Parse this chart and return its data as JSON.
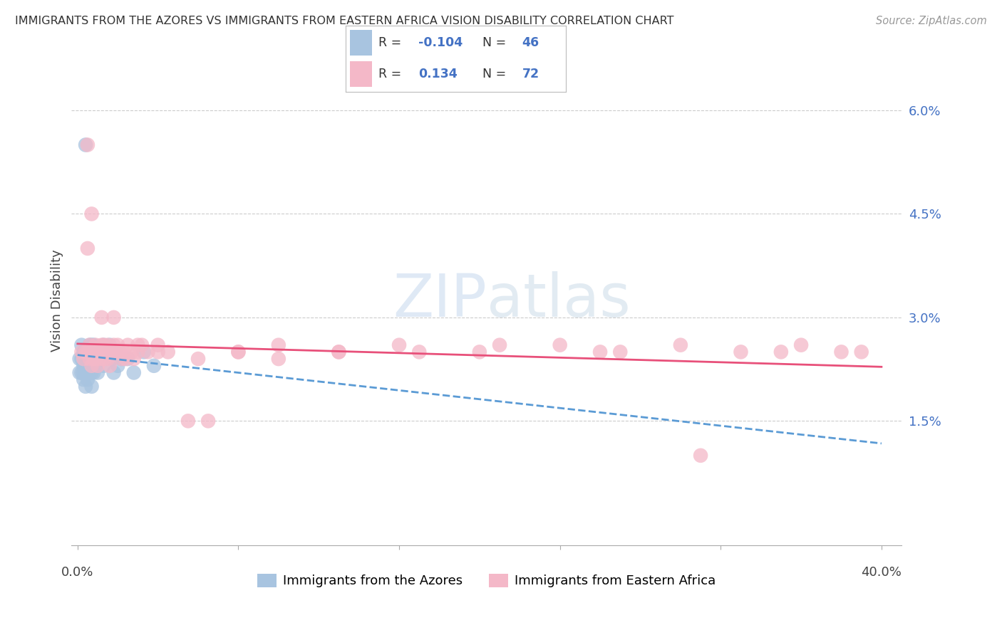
{
  "title": "IMMIGRANTS FROM THE AZORES VS IMMIGRANTS FROM EASTERN AFRICA VISION DISABILITY CORRELATION CHART",
  "source": "Source: ZipAtlas.com",
  "ylabel": "Vision Disability",
  "legend_label1": "Immigrants from the Azores",
  "legend_label2": "Immigrants from Eastern Africa",
  "color_blue": "#a8c4e0",
  "color_pink": "#f4b8c8",
  "color_blue_line": "#5b9bd5",
  "color_pink_line": "#e8507a",
  "color_text_blue": "#4472c4",
  "color_grid": "#cccccc",
  "R1": -0.104,
  "N1": 46,
  "R2": 0.134,
  "N2": 72,
  "azores_x": [
    0.001,
    0.001,
    0.002,
    0.002,
    0.002,
    0.003,
    0.003,
    0.003,
    0.003,
    0.004,
    0.004,
    0.004,
    0.005,
    0.005,
    0.005,
    0.005,
    0.006,
    0.006,
    0.006,
    0.007,
    0.007,
    0.007,
    0.007,
    0.008,
    0.008,
    0.008,
    0.009,
    0.009,
    0.01,
    0.01,
    0.011,
    0.012,
    0.013,
    0.013,
    0.015,
    0.016,
    0.017,
    0.018,
    0.019,
    0.02,
    0.022,
    0.025,
    0.028,
    0.033,
    0.038,
    0.004
  ],
  "azores_y": [
    0.024,
    0.022,
    0.026,
    0.024,
    0.022,
    0.025,
    0.023,
    0.022,
    0.021,
    0.024,
    0.022,
    0.02,
    0.025,
    0.024,
    0.022,
    0.021,
    0.026,
    0.024,
    0.022,
    0.026,
    0.024,
    0.022,
    0.02,
    0.026,
    0.025,
    0.022,
    0.025,
    0.023,
    0.025,
    0.022,
    0.025,
    0.024,
    0.026,
    0.023,
    0.025,
    0.026,
    0.024,
    0.022,
    0.025,
    0.023,
    0.024,
    0.024,
    0.022,
    0.025,
    0.023,
    0.055
  ],
  "eastern_x": [
    0.002,
    0.003,
    0.004,
    0.005,
    0.005,
    0.006,
    0.006,
    0.007,
    0.007,
    0.008,
    0.008,
    0.009,
    0.009,
    0.01,
    0.01,
    0.011,
    0.011,
    0.012,
    0.012,
    0.013,
    0.013,
    0.014,
    0.015,
    0.015,
    0.016,
    0.016,
    0.017,
    0.018,
    0.018,
    0.019,
    0.02,
    0.021,
    0.022,
    0.023,
    0.024,
    0.025,
    0.027,
    0.028,
    0.03,
    0.032,
    0.035,
    0.04,
    0.045,
    0.055,
    0.065,
    0.08,
    0.1,
    0.13,
    0.16,
    0.2,
    0.24,
    0.27,
    0.3,
    0.33,
    0.36,
    0.38,
    0.005,
    0.007,
    0.012,
    0.02,
    0.03,
    0.04,
    0.06,
    0.08,
    0.1,
    0.13,
    0.17,
    0.21,
    0.26,
    0.31,
    0.35,
    0.39
  ],
  "eastern_y": [
    0.025,
    0.024,
    0.025,
    0.04,
    0.025,
    0.026,
    0.024,
    0.025,
    0.023,
    0.025,
    0.024,
    0.026,
    0.024,
    0.025,
    0.023,
    0.025,
    0.024,
    0.026,
    0.025,
    0.024,
    0.026,
    0.025,
    0.026,
    0.024,
    0.025,
    0.023,
    0.025,
    0.026,
    0.03,
    0.025,
    0.026,
    0.025,
    0.024,
    0.025,
    0.024,
    0.026,
    0.025,
    0.024,
    0.025,
    0.026,
    0.025,
    0.026,
    0.025,
    0.015,
    0.015,
    0.025,
    0.026,
    0.025,
    0.026,
    0.025,
    0.026,
    0.025,
    0.026,
    0.025,
    0.026,
    0.025,
    0.055,
    0.045,
    0.03,
    0.025,
    0.026,
    0.025,
    0.024,
    0.025,
    0.024,
    0.025,
    0.025,
    0.026,
    0.025,
    0.01,
    0.025,
    0.025
  ],
  "line_blue_x0": 0.0,
  "line_blue_x1": 0.4,
  "line_pink_x0": 0.0,
  "line_pink_x1": 0.4,
  "xlim": [
    -0.003,
    0.41
  ],
  "ylim": [
    -0.003,
    0.068
  ],
  "ytick_vals": [
    0.015,
    0.03,
    0.045,
    0.06
  ],
  "ytick_labels": [
    "1.5%",
    "3.0%",
    "4.5%",
    "6.0%"
  ]
}
